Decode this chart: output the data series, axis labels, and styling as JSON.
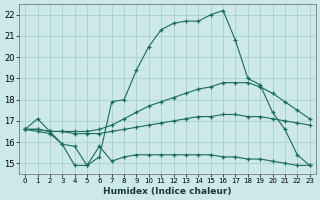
{
  "xlabel": "Humidex (Indice chaleur)",
  "ylabel": "",
  "bg_color": "#cce8e8",
  "grid_color": "#aacfcf",
  "line_color": "#1a6b5a",
  "xlim": [
    -0.5,
    23.5
  ],
  "ylim": [
    14.5,
    22.5
  ],
  "xtick_labels": [
    "0",
    "1",
    "2",
    "3",
    "4",
    "5",
    "6",
    "7",
    "8",
    "9",
    "10",
    "11",
    "12",
    "13",
    "14",
    "15",
    "16",
    "17",
    "18",
    "19",
    "20",
    "21",
    "22",
    "23"
  ],
  "ytick_labels": [
    "15",
    "16",
    "17",
    "18",
    "19",
    "20",
    "21",
    "22"
  ],
  "xticks": [
    0,
    1,
    2,
    3,
    4,
    5,
    6,
    7,
    8,
    9,
    10,
    11,
    12,
    13,
    14,
    15,
    16,
    17,
    18,
    19,
    20,
    21,
    22,
    23
  ],
  "yticks": [
    15,
    16,
    17,
    18,
    19,
    20,
    21,
    22
  ],
  "lines": [
    {
      "x": [
        0,
        1,
        2,
        3,
        4,
        5,
        6,
        7,
        8,
        9,
        10,
        11,
        12,
        13,
        14,
        15,
        16,
        17,
        18,
        19,
        20,
        21,
        22,
        23
      ],
      "y": [
        16.6,
        17.1,
        16.5,
        15.9,
        15.8,
        14.9,
        15.3,
        17.9,
        18.0,
        19.4,
        20.5,
        21.3,
        21.6,
        21.7,
        21.7,
        22.0,
        22.2,
        20.8,
        19.0,
        18.7,
        17.4,
        16.6,
        15.4,
        14.9
      ]
    },
    {
      "x": [
        0,
        1,
        2,
        3,
        4,
        5,
        6,
        7,
        8,
        9,
        10,
        11,
        12,
        13,
        14,
        15,
        16,
        17,
        18,
        19,
        20,
        21,
        22,
        23
      ],
      "y": [
        16.6,
        16.6,
        16.5,
        16.5,
        16.5,
        16.5,
        16.6,
        16.8,
        17.1,
        17.4,
        17.7,
        17.9,
        18.1,
        18.3,
        18.5,
        18.6,
        18.8,
        18.8,
        18.8,
        18.6,
        18.3,
        17.9,
        17.5,
        17.1
      ]
    },
    {
      "x": [
        0,
        1,
        2,
        3,
        4,
        5,
        6,
        7,
        8,
        9,
        10,
        11,
        12,
        13,
        14,
        15,
        16,
        17,
        18,
        19,
        20,
        21,
        22,
        23
      ],
      "y": [
        16.6,
        16.6,
        16.5,
        16.5,
        16.4,
        16.4,
        16.4,
        16.5,
        16.6,
        16.7,
        16.8,
        16.9,
        17.0,
        17.1,
        17.2,
        17.2,
        17.3,
        17.3,
        17.2,
        17.2,
        17.1,
        17.0,
        16.9,
        16.8
      ]
    },
    {
      "x": [
        0,
        1,
        2,
        3,
        4,
        5,
        6,
        7,
        8,
        9,
        10,
        11,
        12,
        13,
        14,
        15,
        16,
        17,
        18,
        19,
        20,
        21,
        22,
        23
      ],
      "y": [
        16.6,
        16.5,
        16.4,
        15.9,
        14.9,
        14.9,
        15.8,
        15.1,
        15.3,
        15.4,
        15.4,
        15.4,
        15.4,
        15.4,
        15.4,
        15.4,
        15.3,
        15.3,
        15.2,
        15.2,
        15.1,
        15.0,
        14.9,
        14.9
      ]
    }
  ]
}
